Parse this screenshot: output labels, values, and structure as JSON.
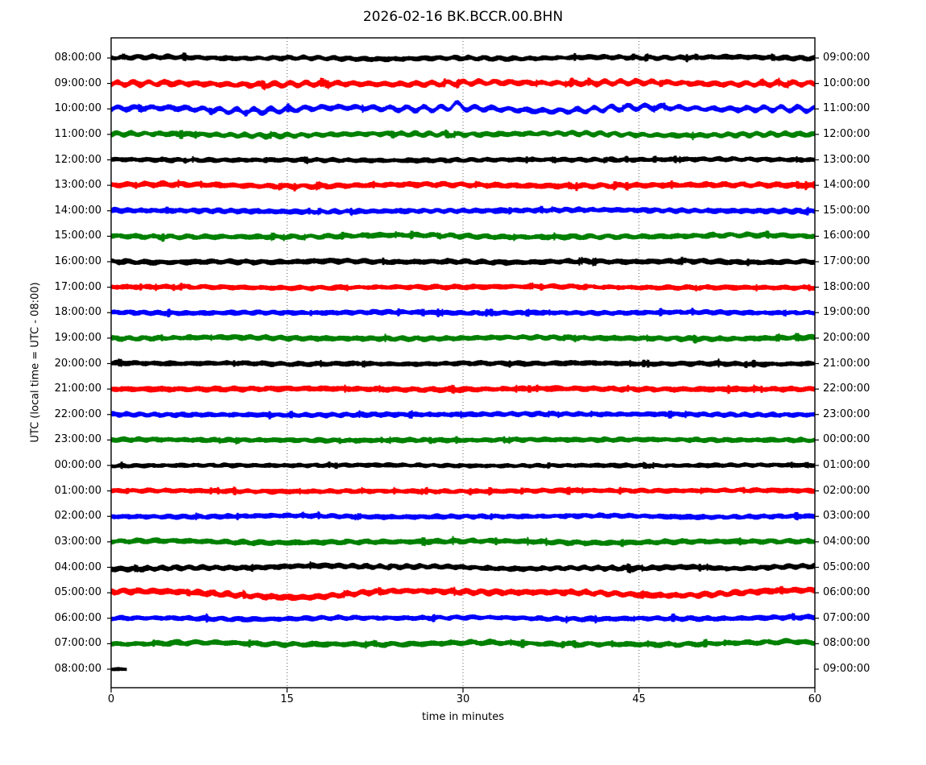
{
  "chart_data": {
    "type": "line",
    "subtype": "helicorder-dayplot",
    "title": "2026-02-16 BK.BCCR.00.BHN",
    "date": "2026-02-16",
    "network": "BK",
    "station": "BCCR",
    "location": "00",
    "channel": "BHN",
    "xlabel": "time in minutes",
    "ylabel": "UTC (local time = UTC - 08:00)",
    "xlim": [
      0,
      60
    ],
    "x_ticks": [
      0,
      15,
      30,
      45,
      60
    ],
    "x_tick_labels": [
      "0",
      "15",
      "30",
      "45",
      "60"
    ],
    "grid": {
      "vertical_at_minutes": [
        15,
        30,
        45
      ],
      "style": "dotted",
      "color": "#555555"
    },
    "minutes_per_row": 60,
    "color_cycle": [
      "#000000",
      "#ff0000",
      "#0000ff",
      "#008000"
    ],
    "rows": [
      {
        "left_label": "08:00:00",
        "right_label": "09:00:00",
        "color": "#000000",
        "duration_min": 60,
        "amp": 3.6,
        "lf": 0.9,
        "wv": 1.1,
        "seed": 101,
        "bumps": []
      },
      {
        "left_label": "09:00:00",
        "right_label": "10:00:00",
        "color": "#ff0000",
        "duration_min": 60,
        "amp": 4.0,
        "lf": 1.5,
        "wv": 2.0,
        "seed": 202,
        "bumps": []
      },
      {
        "left_label": "10:00:00",
        "right_label": "11:00:00",
        "color": "#0000ff",
        "duration_min": 60,
        "amp": 3.8,
        "lf": 2.0,
        "wv": 2.8,
        "seed": 303,
        "bumps": [
          {
            "u": 0.49,
            "a": -5.0,
            "w": 0.006
          }
        ]
      },
      {
        "left_label": "11:00:00",
        "right_label": "12:00:00",
        "color": "#008000",
        "duration_min": 60,
        "amp": 3.7,
        "lf": 1.2,
        "wv": 1.5,
        "seed": 404,
        "bumps": []
      },
      {
        "left_label": "12:00:00",
        "right_label": "13:00:00",
        "color": "#000000",
        "duration_min": 60,
        "amp": 3.4,
        "lf": 0.6,
        "wv": 0.9,
        "seed": 505,
        "bumps": []
      },
      {
        "left_label": "13:00:00",
        "right_label": "14:00:00",
        "color": "#ff0000",
        "duration_min": 60,
        "amp": 4.0,
        "lf": 0.8,
        "wv": 1.2,
        "seed": 606,
        "bumps": []
      },
      {
        "left_label": "14:00:00",
        "right_label": "15:00:00",
        "color": "#0000ff",
        "duration_min": 60,
        "amp": 3.8,
        "lf": 0.8,
        "wv": 1.0,
        "seed": 707,
        "bumps": []
      },
      {
        "left_label": "15:00:00",
        "right_label": "16:00:00",
        "color": "#008000",
        "duration_min": 60,
        "amp": 3.8,
        "lf": 1.0,
        "wv": 1.2,
        "seed": 808,
        "bumps": []
      },
      {
        "left_label": "16:00:00",
        "right_label": "17:00:00",
        "color": "#000000",
        "duration_min": 60,
        "amp": 3.8,
        "lf": 0.8,
        "wv": 1.0,
        "seed": 909,
        "bumps": []
      },
      {
        "left_label": "17:00:00",
        "right_label": "18:00:00",
        "color": "#ff0000",
        "duration_min": 60,
        "amp": 3.6,
        "lf": 0.6,
        "wv": 0.9,
        "seed": 1010,
        "bumps": []
      },
      {
        "left_label": "18:00:00",
        "right_label": "19:00:00",
        "color": "#0000ff",
        "duration_min": 60,
        "amp": 3.6,
        "lf": 0.5,
        "wv": 0.8,
        "seed": 1111,
        "bumps": []
      },
      {
        "left_label": "19:00:00",
        "right_label": "20:00:00",
        "color": "#008000",
        "duration_min": 60,
        "amp": 3.8,
        "lf": 0.8,
        "wv": 1.0,
        "seed": 1212,
        "bumps": []
      },
      {
        "left_label": "20:00:00",
        "right_label": "21:00:00",
        "color": "#000000",
        "duration_min": 60,
        "amp": 3.6,
        "lf": 0.5,
        "wv": 0.8,
        "seed": 1313,
        "bumps": []
      },
      {
        "left_label": "21:00:00",
        "right_label": "22:00:00",
        "color": "#ff0000",
        "duration_min": 60,
        "amp": 4.0,
        "lf": 0.6,
        "wv": 0.9,
        "seed": 1414,
        "bumps": []
      },
      {
        "left_label": "22:00:00",
        "right_label": "23:00:00",
        "color": "#0000ff",
        "duration_min": 60,
        "amp": 3.6,
        "lf": 0.5,
        "wv": 0.9,
        "seed": 1515,
        "bumps": []
      },
      {
        "left_label": "23:00:00",
        "right_label": "00:00:00",
        "color": "#008000",
        "duration_min": 60,
        "amp": 3.6,
        "lf": 0.5,
        "wv": 0.8,
        "seed": 1616,
        "bumps": []
      },
      {
        "left_label": "00:00:00",
        "right_label": "01:00:00",
        "color": "#000000",
        "duration_min": 60,
        "amp": 3.2,
        "lf": 0.4,
        "wv": 0.7,
        "seed": 1717,
        "bumps": []
      },
      {
        "left_label": "01:00:00",
        "right_label": "02:00:00",
        "color": "#ff0000",
        "duration_min": 60,
        "amp": 3.6,
        "lf": 0.5,
        "wv": 0.8,
        "seed": 1818,
        "bumps": []
      },
      {
        "left_label": "02:00:00",
        "right_label": "03:00:00",
        "color": "#0000ff",
        "duration_min": 60,
        "amp": 3.6,
        "lf": 0.6,
        "wv": 0.8,
        "seed": 1919,
        "bumps": []
      },
      {
        "left_label": "03:00:00",
        "right_label": "04:00:00",
        "color": "#008000",
        "duration_min": 60,
        "amp": 3.8,
        "lf": 0.8,
        "wv": 1.0,
        "seed": 2020,
        "bumps": []
      },
      {
        "left_label": "04:00:00",
        "right_label": "05:00:00",
        "color": "#000000",
        "duration_min": 60,
        "amp": 3.8,
        "lf": 1.6,
        "wv": 1.1,
        "seed": 2121,
        "bumps": [
          {
            "u": 0.88,
            "a": 3.0,
            "w": 0.035
          }
        ]
      },
      {
        "left_label": "05:00:00",
        "right_label": "06:00:00",
        "color": "#ff0000",
        "duration_min": 60,
        "amp": 4.2,
        "lf": 2.0,
        "wv": 1.4,
        "seed": 2222,
        "bumps": [
          {
            "u": 0.29,
            "a": 3.0,
            "w": 0.05
          }
        ]
      },
      {
        "left_label": "06:00:00",
        "right_label": "07:00:00",
        "color": "#0000ff",
        "duration_min": 60,
        "amp": 3.6,
        "lf": 0.8,
        "wv": 1.0,
        "seed": 2323,
        "bumps": []
      },
      {
        "left_label": "07:00:00",
        "right_label": "08:00:00",
        "color": "#008000",
        "duration_min": 60,
        "amp": 3.8,
        "lf": 1.0,
        "wv": 1.2,
        "seed": 2424,
        "bumps": [
          {
            "u": 0.97,
            "a": -2.0,
            "w": 0.02
          }
        ]
      },
      {
        "left_label": "08:00:00",
        "right_label": "09:00:00",
        "color": "#000000",
        "duration_min": 1.3,
        "amp": 3.0,
        "lf": 0.3,
        "wv": 0.5,
        "seed": 2525,
        "bumps": []
      }
    ]
  }
}
